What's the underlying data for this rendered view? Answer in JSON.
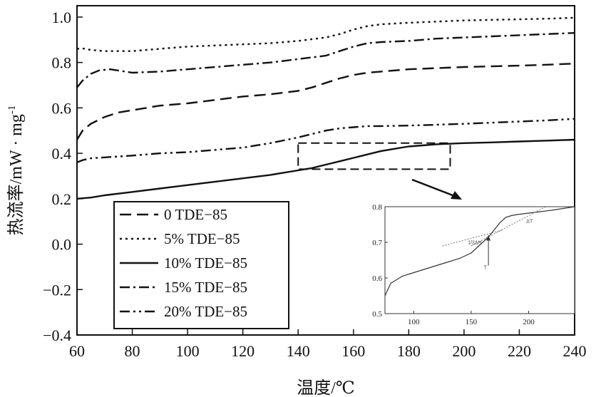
{
  "chart_data": {
    "type": "line",
    "xlabel": "温度/℃",
    "ylabel": "热流率/mW · mg",
    "ylabel_sup": "-1",
    "xlim": [
      60,
      240
    ],
    "ylim": [
      -0.4,
      1.05
    ],
    "xticks": [
      60,
      80,
      100,
      120,
      140,
      160,
      180,
      200,
      220,
      240
    ],
    "yticks": [
      -0.4,
      -0.2,
      0.0,
      0.2,
      0.4,
      0.6,
      0.8,
      1.0
    ],
    "xtick_labels": [
      "60",
      "80",
      "100",
      "120",
      "140",
      "160",
      "180",
      "200",
      "220",
      "240"
    ],
    "ytick_labels": [
      "−0.4",
      "−0.2",
      "0.0",
      "0.2",
      "0.4",
      "0.6",
      "0.8",
      "1.0"
    ],
    "grid": false,
    "legend_position": "bottom-left",
    "series": [
      {
        "name": "0 TDE−85",
        "dash": "dashed",
        "x": [
          60,
          62,
          65,
          70,
          75,
          80,
          90,
          100,
          110,
          120,
          130,
          140,
          145,
          150,
          155,
          160,
          165,
          170,
          180,
          190,
          200,
          210,
          220,
          230,
          240
        ],
        "y": [
          0.46,
          0.5,
          0.53,
          0.56,
          0.58,
          0.59,
          0.61,
          0.62,
          0.635,
          0.65,
          0.66,
          0.675,
          0.69,
          0.71,
          0.73,
          0.745,
          0.755,
          0.76,
          0.77,
          0.775,
          0.78,
          0.783,
          0.786,
          0.79,
          0.795
        ]
      },
      {
        "name": "5% TDE−85",
        "dash": "dotted",
        "x": [
          60,
          62,
          65,
          70,
          80,
          90,
          100,
          110,
          120,
          130,
          140,
          150,
          155,
          160,
          165,
          170,
          180,
          190,
          200,
          210,
          220,
          230,
          240
        ],
        "y": [
          0.86,
          0.862,
          0.855,
          0.85,
          0.85,
          0.86,
          0.87,
          0.875,
          0.88,
          0.885,
          0.895,
          0.91,
          0.925,
          0.945,
          0.96,
          0.968,
          0.975,
          0.98,
          0.985,
          0.988,
          0.99,
          0.993,
          0.997
        ]
      },
      {
        "name": "10% TDE−85",
        "dash": "solid",
        "x": [
          60,
          65,
          70,
          80,
          90,
          100,
          110,
          120,
          130,
          140,
          145,
          150,
          155,
          160,
          165,
          170,
          175,
          180,
          185,
          190,
          200,
          210,
          220,
          230,
          240
        ],
        "y": [
          0.2,
          0.205,
          0.215,
          0.23,
          0.245,
          0.26,
          0.275,
          0.29,
          0.305,
          0.325,
          0.335,
          0.35,
          0.365,
          0.38,
          0.395,
          0.41,
          0.42,
          0.43,
          0.435,
          0.44,
          0.445,
          0.448,
          0.452,
          0.456,
          0.46
        ]
      },
      {
        "name": "15% TDE−85",
        "dash": "dashdot",
        "x": [
          60,
          62,
          65,
          68,
          72,
          80,
          90,
          100,
          110,
          120,
          130,
          140,
          150,
          155,
          160,
          165,
          170,
          180,
          190,
          200,
          210,
          220,
          230,
          240
        ],
        "y": [
          0.69,
          0.72,
          0.75,
          0.765,
          0.77,
          0.755,
          0.76,
          0.77,
          0.78,
          0.79,
          0.8,
          0.815,
          0.83,
          0.85,
          0.87,
          0.885,
          0.89,
          0.895,
          0.905,
          0.91,
          0.915,
          0.92,
          0.925,
          0.93
        ]
      },
      {
        "name": "20% TDE−85",
        "dash": "dashdotdot",
        "x": [
          60,
          62,
          65,
          70,
          80,
          90,
          100,
          110,
          120,
          130,
          140,
          145,
          150,
          155,
          160,
          165,
          170,
          180,
          190,
          200,
          210,
          220,
          230,
          240
        ],
        "y": [
          0.36,
          0.37,
          0.378,
          0.382,
          0.39,
          0.4,
          0.405,
          0.415,
          0.425,
          0.445,
          0.47,
          0.485,
          0.5,
          0.51,
          0.515,
          0.52,
          0.52,
          0.522,
          0.526,
          0.53,
          0.535,
          0.54,
          0.545,
          0.552
        ]
      }
    ],
    "zoom_box": {
      "x": [
        140,
        195
      ],
      "y": [
        0.33,
        0.445
      ]
    },
    "inset": {
      "type": "line",
      "xlim": [
        75,
        240
      ],
      "ylim": [
        0.5,
        0.8
      ],
      "xticks": [
        100,
        150,
        200
      ],
      "yticks": [
        0.5,
        0.6,
        0.7,
        0.8
      ],
      "xtick_labels": [
        "100",
        "150",
        "200"
      ],
      "ytick_labels": [
        "0.5",
        "0.6",
        "0.7",
        "0.8"
      ],
      "series": [
        {
          "x": [
            75,
            80,
            90,
            100,
            110,
            120,
            130,
            140,
            150,
            155,
            160,
            165,
            170,
            175,
            180,
            185,
            190,
            200,
            210,
            220,
            230,
            240
          ],
          "y": [
            0.55,
            0.585,
            0.605,
            0.615,
            0.625,
            0.635,
            0.645,
            0.655,
            0.67,
            0.685,
            0.7,
            0.715,
            0.735,
            0.755,
            0.77,
            0.775,
            0.778,
            0.782,
            0.786,
            0.79,
            0.795,
            0.8
          ]
        }
      ],
      "annotations": [
        "1/2ΔH",
        "ΔT",
        "T"
      ]
    }
  }
}
